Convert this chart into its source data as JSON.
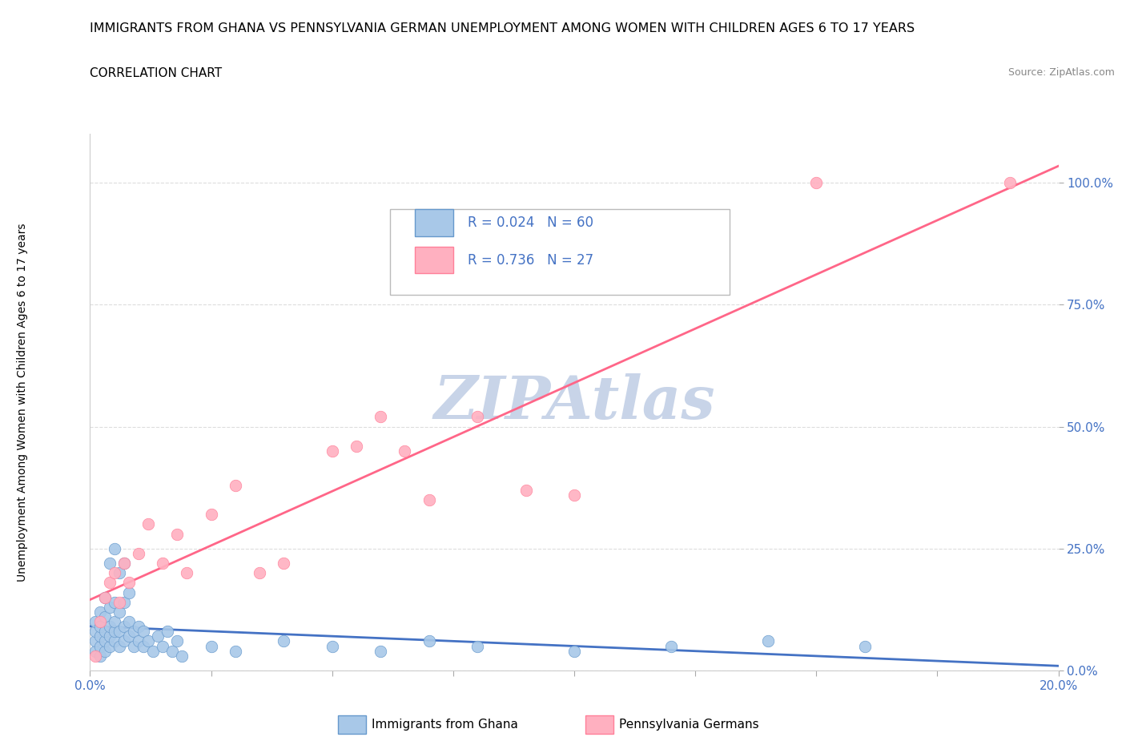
{
  "title": "IMMIGRANTS FROM GHANA VS PENNSYLVANIA GERMAN UNEMPLOYMENT AMONG WOMEN WITH CHILDREN AGES 6 TO 17 YEARS",
  "subtitle": "CORRELATION CHART",
  "source": "Source: ZipAtlas.com",
  "ylabel": "Unemployment Among Women with Children Ages 6 to 17 years",
  "legend1_label": "Immigrants from Ghana",
  "legend2_label": "Pennsylvania Germans",
  "R1": 0.024,
  "N1": 60,
  "R2": 0.736,
  "N2": 27,
  "blue_scatter_color": "#A8C8E8",
  "blue_edge_color": "#6699CC",
  "blue_line_color": "#4472C4",
  "pink_scatter_color": "#FFB0C0",
  "pink_edge_color": "#FF8099",
  "pink_line_color": "#FF6688",
  "text_color": "#4472C4",
  "watermark": "ZIPAtlas",
  "watermark_color": "#C8D4E8",
  "bg_color": "#FFFFFF",
  "grid_color": "#DDDDDD",
  "scatter_blue": [
    [
      0.001,
      0.04
    ],
    [
      0.001,
      0.06
    ],
    [
      0.001,
      0.08
    ],
    [
      0.001,
      0.1
    ],
    [
      0.002,
      0.03
    ],
    [
      0.002,
      0.05
    ],
    [
      0.002,
      0.07
    ],
    [
      0.002,
      0.09
    ],
    [
      0.002,
      0.12
    ],
    [
      0.003,
      0.04
    ],
    [
      0.003,
      0.06
    ],
    [
      0.003,
      0.08
    ],
    [
      0.003,
      0.11
    ],
    [
      0.003,
      0.15
    ],
    [
      0.004,
      0.05
    ],
    [
      0.004,
      0.07
    ],
    [
      0.004,
      0.09
    ],
    [
      0.004,
      0.13
    ],
    [
      0.004,
      0.22
    ],
    [
      0.005,
      0.06
    ],
    [
      0.005,
      0.08
    ],
    [
      0.005,
      0.1
    ],
    [
      0.005,
      0.14
    ],
    [
      0.005,
      0.25
    ],
    [
      0.006,
      0.05
    ],
    [
      0.006,
      0.08
    ],
    [
      0.006,
      0.12
    ],
    [
      0.006,
      0.2
    ],
    [
      0.007,
      0.06
    ],
    [
      0.007,
      0.09
    ],
    [
      0.007,
      0.14
    ],
    [
      0.007,
      0.22
    ],
    [
      0.008,
      0.07
    ],
    [
      0.008,
      0.1
    ],
    [
      0.008,
      0.16
    ],
    [
      0.009,
      0.05
    ],
    [
      0.009,
      0.08
    ],
    [
      0.01,
      0.06
    ],
    [
      0.01,
      0.09
    ],
    [
      0.011,
      0.05
    ],
    [
      0.011,
      0.08
    ],
    [
      0.012,
      0.06
    ],
    [
      0.013,
      0.04
    ],
    [
      0.014,
      0.07
    ],
    [
      0.015,
      0.05
    ],
    [
      0.016,
      0.08
    ],
    [
      0.017,
      0.04
    ],
    [
      0.018,
      0.06
    ],
    [
      0.019,
      0.03
    ],
    [
      0.025,
      0.05
    ],
    [
      0.03,
      0.04
    ],
    [
      0.04,
      0.06
    ],
    [
      0.05,
      0.05
    ],
    [
      0.06,
      0.04
    ],
    [
      0.07,
      0.06
    ],
    [
      0.08,
      0.05
    ],
    [
      0.1,
      0.04
    ],
    [
      0.12,
      0.05
    ],
    [
      0.14,
      0.06
    ],
    [
      0.16,
      0.05
    ]
  ],
  "scatter_pink": [
    [
      0.001,
      0.03
    ],
    [
      0.002,
      0.1
    ],
    [
      0.003,
      0.15
    ],
    [
      0.004,
      0.18
    ],
    [
      0.005,
      0.2
    ],
    [
      0.006,
      0.14
    ],
    [
      0.007,
      0.22
    ],
    [
      0.008,
      0.18
    ],
    [
      0.01,
      0.24
    ],
    [
      0.012,
      0.3
    ],
    [
      0.015,
      0.22
    ],
    [
      0.018,
      0.28
    ],
    [
      0.02,
      0.2
    ],
    [
      0.025,
      0.32
    ],
    [
      0.03,
      0.38
    ],
    [
      0.035,
      0.2
    ],
    [
      0.04,
      0.22
    ],
    [
      0.05,
      0.45
    ],
    [
      0.055,
      0.46
    ],
    [
      0.06,
      0.52
    ],
    [
      0.065,
      0.45
    ],
    [
      0.07,
      0.35
    ],
    [
      0.08,
      0.52
    ],
    [
      0.09,
      0.37
    ],
    [
      0.1,
      0.36
    ],
    [
      0.15,
      1.0
    ],
    [
      0.19,
      1.0
    ]
  ],
  "xlim": [
    0.0,
    0.2
  ],
  "ylim": [
    0.0,
    1.1
  ],
  "yticks": [
    0.0,
    0.25,
    0.5,
    0.75,
    1.0
  ],
  "ytick_labels": [
    "0.0%",
    "25.0%",
    "50.0%",
    "75.0%",
    "100.0%"
  ],
  "xtick_positions": [
    0.0,
    0.025,
    0.05,
    0.075,
    0.1,
    0.125,
    0.15,
    0.175,
    0.2
  ],
  "xtick_show": [
    0.0,
    0.2
  ],
  "xtick_labels": [
    "0.0%",
    "20.0%"
  ]
}
